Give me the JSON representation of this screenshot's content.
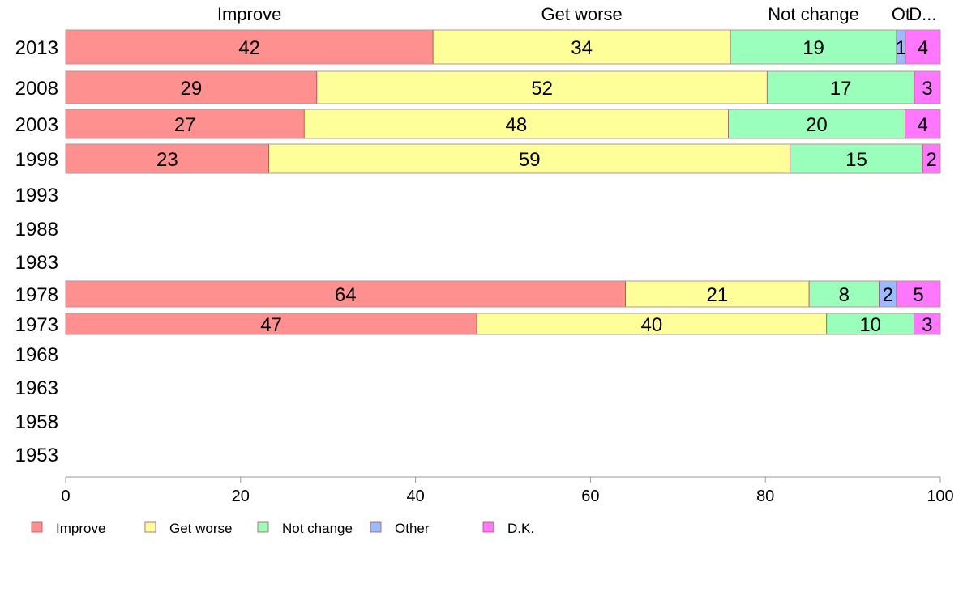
{
  "chart_data": {
    "type": "bar",
    "orientation": "horizontal",
    "stacked": true,
    "categories": [
      "2013",
      "2008",
      "2003",
      "1998",
      "1993",
      "1988",
      "1983",
      "1978",
      "1973",
      "1968",
      "1963",
      "1958",
      "1953"
    ],
    "series": [
      {
        "name": "Improve",
        "color": "#ff9090",
        "values": [
          42,
          29,
          27,
          23,
          null,
          null,
          null,
          64,
          47,
          null,
          null,
          null,
          null
        ]
      },
      {
        "name": "Get worse",
        "color": "#ffff99",
        "values": [
          34,
          52,
          48,
          59,
          null,
          null,
          null,
          21,
          40,
          null,
          null,
          null,
          null
        ]
      },
      {
        "name": "Not change",
        "color": "#99ffbb",
        "values": [
          19,
          17,
          20,
          15,
          null,
          null,
          null,
          8,
          10,
          null,
          null,
          null,
          null
        ]
      },
      {
        "name": "Other",
        "color": "#99bbff",
        "values": [
          1,
          0,
          0,
          0,
          null,
          null,
          null,
          2,
          0,
          null,
          null,
          null,
          null
        ]
      },
      {
        "name": "D.K.",
        "color": "#ff77ff",
        "values": [
          4,
          3,
          4,
          2,
          null,
          null,
          null,
          5,
          3,
          null,
          null,
          null,
          null
        ]
      }
    ],
    "top_labels": [
      "Improve",
      "Get worse",
      "Not change",
      "Ot",
      "D..."
    ],
    "xlim": [
      0,
      100
    ],
    "xticks": [
      "0",
      "20",
      "40",
      "60",
      "80",
      "100"
    ],
    "grid": false,
    "legend": "bottom-left"
  }
}
